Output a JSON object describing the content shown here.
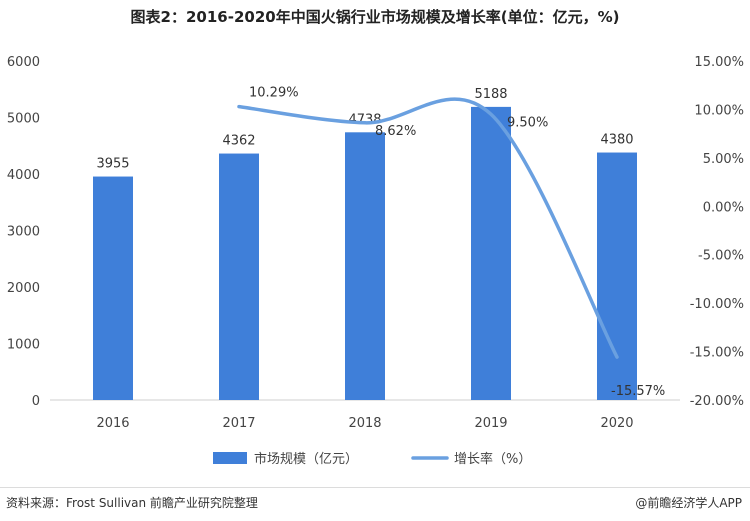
{
  "title": "图表2：2016-2020年中国火锅行业市场规模及增长率(单位：亿元，%)",
  "source": "资料来源：Frost Sullivan 前瞻产业研究院整理",
  "brand": "@前瞻经济学人APP",
  "colors": {
    "bar": "#3f7fd9",
    "line": "#6aa0e0",
    "axis": "#cfcfcf",
    "text": "#444444"
  },
  "chart_data": {
    "type": "bar+line",
    "title": "图表2：2016-2020年中国火锅行业市场规模及增长率(单位：亿元，%)",
    "categories": [
      "2016",
      "2017",
      "2018",
      "2019",
      "2020"
    ],
    "series": [
      {
        "name": "市场规模（亿元）",
        "type": "bar",
        "axis": "left",
        "values": [
          3955,
          4362,
          4738,
          5188,
          4380
        ],
        "labels": [
          "3955",
          "4362",
          "4738",
          "5188",
          "4380"
        ]
      },
      {
        "name": "增长率（%）",
        "type": "line",
        "axis": "right",
        "values": [
          null,
          10.29,
          8.62,
          9.5,
          -15.57
        ],
        "labels": [
          "",
          "10.29%",
          "8.62%",
          "9.50%",
          "-15.57%"
        ]
      }
    ],
    "y_left": {
      "min": 0,
      "max": 6000,
      "ticks": [
        "0",
        "1000",
        "2000",
        "3000",
        "4000",
        "5000",
        "6000"
      ]
    },
    "y_right": {
      "min": -20,
      "max": 15,
      "ticks": [
        "-20.00%",
        "-15.00%",
        "-10.00%",
        "-5.00%",
        "0.00%",
        "5.00%",
        "10.00%",
        "15.00%"
      ]
    },
    "grid": false,
    "legend_position": "bottom"
  }
}
